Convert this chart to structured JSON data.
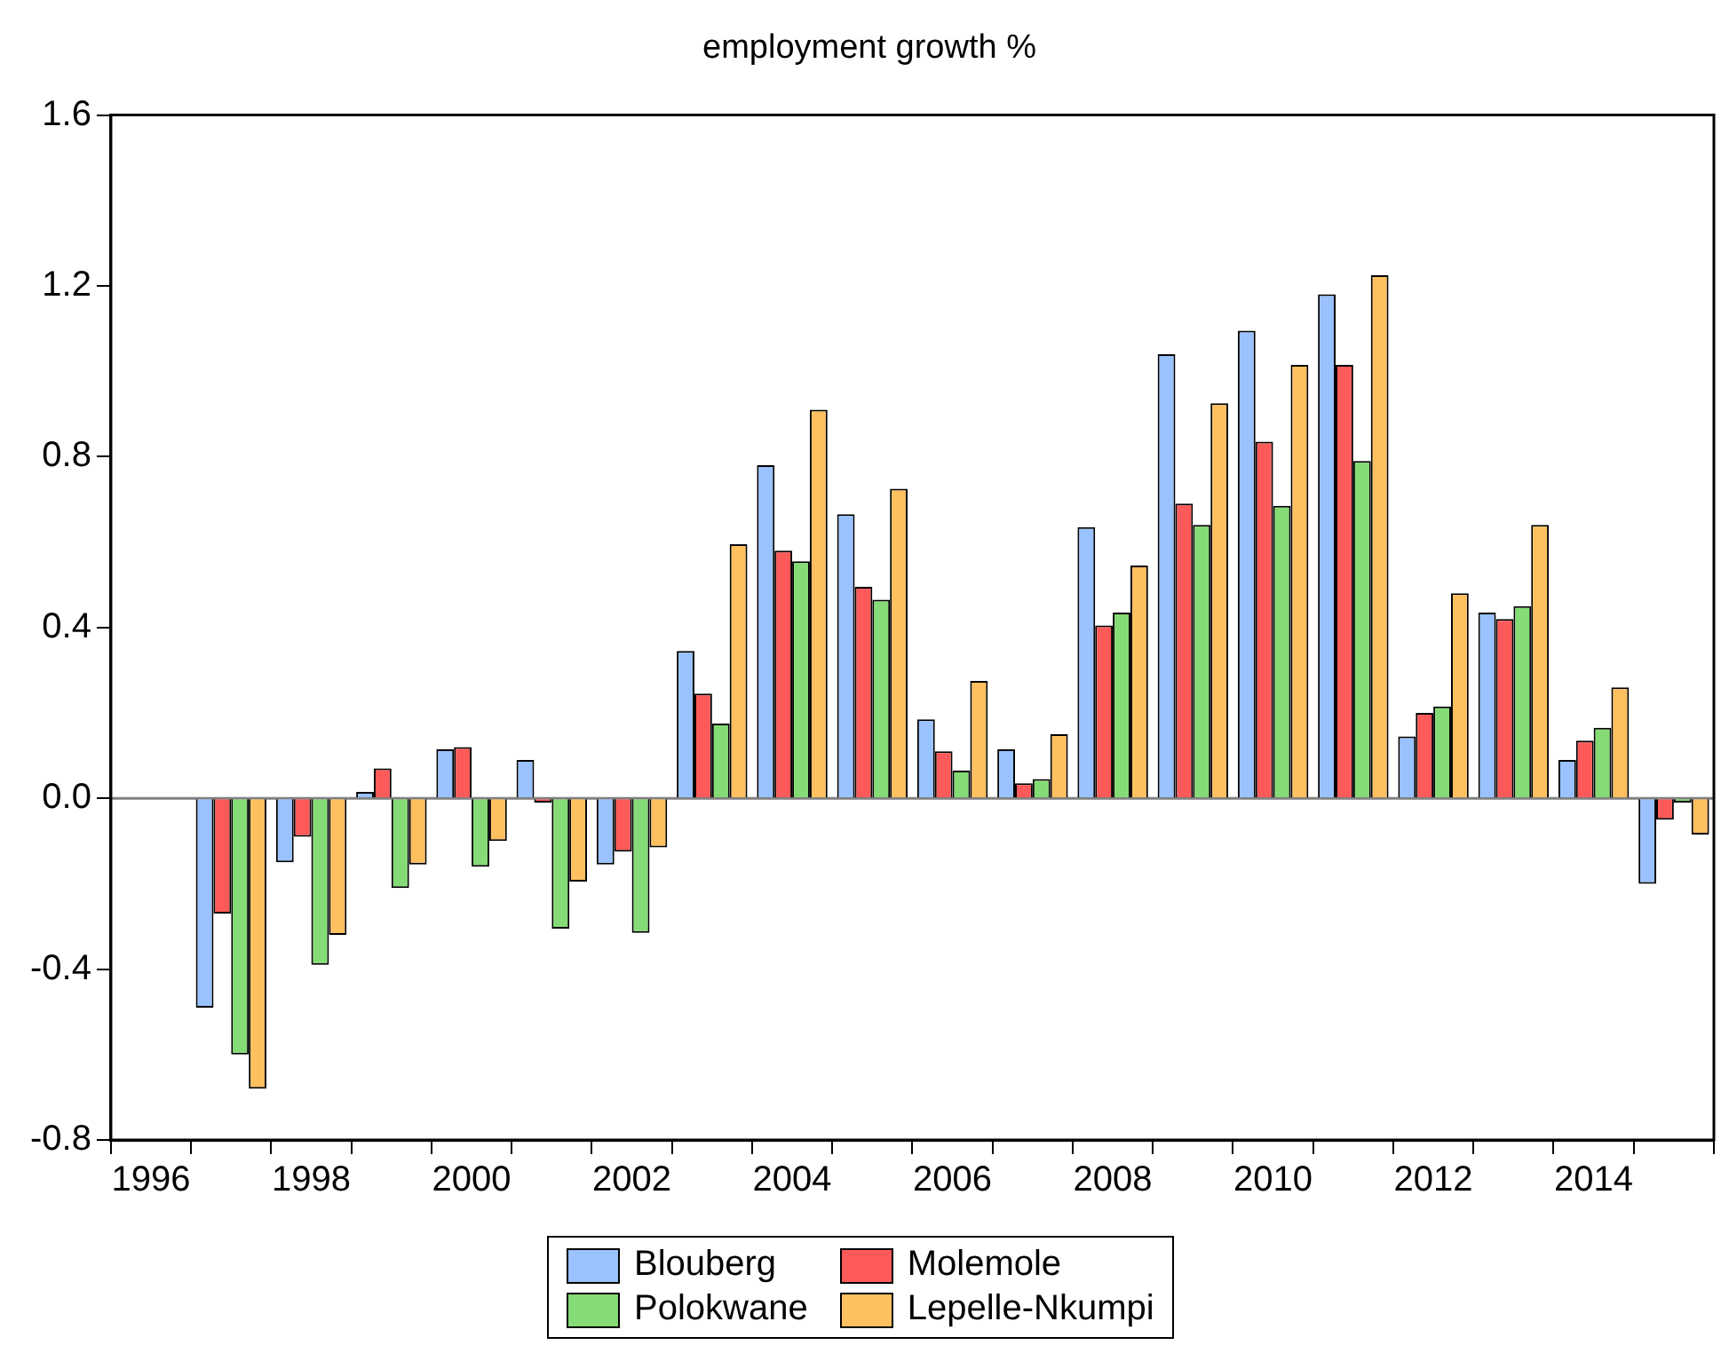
{
  "chart_data": {
    "type": "bar",
    "title": "employment growth %",
    "categories": [
      "1996",
      null,
      "1998",
      null,
      "2000",
      null,
      "2002",
      null,
      "2004",
      null,
      "2006",
      null,
      "2008",
      null,
      "2010",
      null,
      "2012",
      null,
      "2014",
      null
    ],
    "series": [
      {
        "name": "Blouberg",
        "color": "#99c2ff",
        "values": [
          null,
          -0.49,
          -0.15,
          0.015,
          0.115,
          0.09,
          -0.155,
          0.345,
          0.78,
          0.665,
          0.185,
          0.115,
          0.635,
          1.04,
          1.095,
          1.18,
          0.145,
          0.435,
          0.09,
          -0.2
        ]
      },
      {
        "name": "Molemole",
        "color": "#ff5a5a",
        "values": [
          null,
          -0.27,
          -0.09,
          0.07,
          0.12,
          -0.01,
          -0.125,
          0.245,
          0.58,
          0.495,
          0.11,
          0.035,
          0.405,
          0.69,
          0.835,
          1.015,
          0.2,
          0.42,
          0.135,
          -0.05
        ]
      },
      {
        "name": "Polokwane",
        "color": "#85db75",
        "values": [
          null,
          -0.6,
          -0.39,
          -0.21,
          -0.16,
          -0.305,
          -0.315,
          0.175,
          0.555,
          0.465,
          0.065,
          0.045,
          0.435,
          0.64,
          0.685,
          0.79,
          0.215,
          0.45,
          0.165,
          -0.01
        ]
      },
      {
        "name": "Lepelle-Nkumpi",
        "color": "#ffc060",
        "values": [
          null,
          -0.68,
          -0.32,
          -0.155,
          -0.1,
          -0.195,
          -0.115,
          0.595,
          0.91,
          0.725,
          0.275,
          0.15,
          0.545,
          0.925,
          1.015,
          1.225,
          0.48,
          0.64,
          0.26,
          -0.085
        ]
      }
    ],
    "ylim": [
      -0.8,
      1.6
    ],
    "yticks": [
      -0.8,
      -0.4,
      {
        "value": 0,
        "label": "0.0"
      },
      0.4,
      0.8,
      1.2,
      1.6
    ],
    "ref_lines": [
      {
        "axis": "y",
        "value": 0,
        "label": null,
        "color": "#808080"
      }
    ],
    "grid": false,
    "legend": "bottom"
  }
}
